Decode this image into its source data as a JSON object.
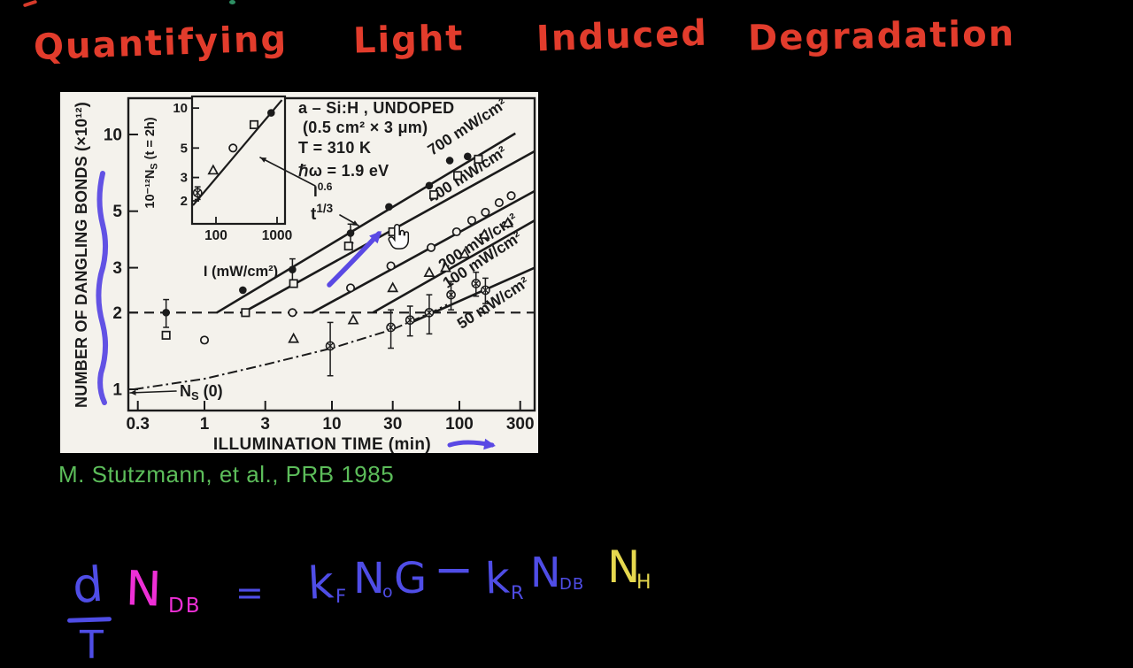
{
  "frame": {
    "background": "#000000"
  },
  "artifacts": {
    "stray_mark_color": "#d63a2a",
    "green_dot_color": "#2e8f63"
  },
  "title": {
    "color": "#e23c2c",
    "words": [
      "Quantifying",
      "Light",
      "Induced",
      "Degradation"
    ]
  },
  "citation": {
    "color": "#5cbd5a",
    "text": "M. Stutzmann, et al., PRB 1985"
  },
  "figure": {
    "bg": "#f4f2ec",
    "ink": "#1b1b1b",
    "overlay_color": "#5a49e4",
    "cursor_shape": "hand-pointer"
  },
  "chart_data": [
    {
      "id": "main",
      "type": "scatter",
      "xscale": "log",
      "yscale": "log",
      "xlabel": "ILLUMINATION TIME (min)",
      "ylabel": "NUMBER OF DANGLING BONDS (×10¹²)",
      "xticks": [
        0.3,
        1,
        3,
        10,
        30,
        100,
        300
      ],
      "yticks": [
        1,
        2,
        3,
        5,
        10
      ],
      "xlim": [
        0.26,
        390
      ],
      "ylim": [
        0.9,
        13.7
      ],
      "grid": false,
      "info_lines": [
        "a – Si:H , UNDOPED",
        "(0.5 cm² × 3 μm)",
        "T  =  310 K",
        "ℏω  =  1.9 eV"
      ],
      "slope_label": {
        "base": "t",
        "exp": "1/3"
      },
      "ns0_label": {
        "base": "N",
        "sub": "S",
        "rest": " (0)"
      },
      "dashed_hline": 2,
      "dashdot_curve": [
        [
          0.28,
          1.0
        ],
        [
          1,
          1.1
        ],
        [
          3,
          1.25
        ],
        [
          10,
          1.45
        ],
        [
          30,
          1.72
        ],
        [
          60,
          2.0
        ],
        [
          80,
          2.15
        ]
      ],
      "series": [
        {
          "name": "700 mW/cm²",
          "marker": "filled-circle",
          "line": [
            [
              1.25,
              2.0
            ],
            [
              275,
              10.1
            ]
          ],
          "label_anchor": [
            121,
            10.3
          ],
          "points": [
            [
              0.5,
              2.0,
              0.25
            ],
            [
              2,
              2.45
            ],
            [
              4.9,
              2.95,
              0.3
            ],
            [
              14,
              4.1,
              0.35
            ],
            [
              28,
              5.2
            ],
            [
              58,
              6.3
            ],
            [
              84,
              7.9
            ],
            [
              116,
              8.2
            ]
          ]
        },
        {
          "name": "400 mW/cm²",
          "marker": "open-square",
          "line": [
            [
              2.0,
              2.0
            ],
            [
              390,
              8.6
            ]
          ],
          "label_anchor": [
            121,
            6.7
          ],
          "points": [
            [
              0.5,
              1.63
            ],
            [
              2.1,
              2.0
            ],
            [
              5,
              2.6
            ],
            [
              13.5,
              3.65
            ],
            [
              30,
              4.15
            ],
            [
              63,
              5.8
            ],
            [
              97,
              6.9
            ],
            [
              141,
              8.0
            ]
          ]
        },
        {
          "name": "200 mW/cm²",
          "marker": "open-circle",
          "line": [
            [
              7.0,
              2.0
            ],
            [
              390,
              6.0
            ]
          ],
          "label_anchor": [
            147,
            3.65
          ],
          "points": [
            [
              1,
              1.56
            ],
            [
              4.9,
              2.0
            ],
            [
              14,
              2.5
            ],
            [
              29,
              3.05
            ],
            [
              60,
              3.6
            ],
            [
              95,
              4.15
            ],
            [
              125,
              4.6
            ],
            [
              160,
              4.95
            ],
            [
              205,
              5.4
            ],
            [
              255,
              5.75
            ]
          ]
        },
        {
          "name": "100 mW/cm²",
          "marker": "open-triangle",
          "line": [
            [
              21,
              2.0
            ],
            [
              390,
              4.6
            ]
          ],
          "label_anchor": [
            159,
            3.1
          ],
          "points": [
            [
              5,
              1.58
            ],
            [
              14.7,
              1.87
            ],
            [
              30,
              2.5
            ],
            [
              58,
              2.87
            ],
            [
              78,
              3.0
            ],
            [
              110,
              3.4
            ],
            [
              157,
              4.05
            ],
            [
              240,
              4.5
            ]
          ]
        },
        {
          "name": "50 mW/cm²",
          "marker": "circle-x",
          "line": [
            [
              42,
              1.83
            ],
            [
              390,
              3.0
            ]
          ],
          "label_anchor": [
            193,
            2.1
          ],
          "points": [
            [
              9.7,
              1.48,
              0.35
            ],
            [
              29,
              1.75,
              0.3
            ],
            [
              41,
              1.87,
              0.25
            ],
            [
              58,
              2.0,
              0.35
            ],
            [
              86,
              2.35,
              0.3
            ],
            [
              135,
              2.6,
              0.28
            ],
            [
              160,
              2.45,
              0.28
            ]
          ]
        }
      ]
    },
    {
      "id": "inset",
      "type": "scatter",
      "xscale": "log",
      "yscale": "log",
      "xlabel": "I (mW/cm²)",
      "ylabel_parts": {
        "pre": "10⁻¹²N",
        "sub": "S",
        "post": " (t = 2h)"
      },
      "xticks": [
        100,
        1000
      ],
      "yticks": [
        2,
        3,
        5,
        10
      ],
      "xlim": [
        41,
        1350
      ],
      "ylim": [
        1.35,
        12
      ],
      "power_label": {
        "base": "I",
        "exp": "0.6"
      },
      "line": [
        [
          42,
          1.85
        ],
        [
          1200,
          11.5
        ]
      ],
      "points": [
        {
          "xy": [
            50,
            2.3
          ],
          "marker": "circle-x",
          "err": 0.25
        },
        {
          "xy": [
            90,
            3.4
          ],
          "marker": "open-triangle"
        },
        {
          "xy": [
            190,
            5.0
          ],
          "marker": "open-circle"
        },
        {
          "xy": [
            420,
            7.5
          ],
          "marker": "open-square"
        },
        {
          "xy": [
            800,
            9.2
          ],
          "marker": "filled-circle"
        }
      ]
    }
  ],
  "equation": {
    "blue": "#4f4de6",
    "magenta": "#ee2fd6",
    "yellow": "#e6d84e",
    "terms": {
      "d": "d",
      "denom": "T",
      "N1": "N",
      "N1sub": "DB",
      "eq": "=",
      "k1": "k",
      "k1sub": "F",
      "N2": "N",
      "N2sub": "o",
      "G": "G",
      "minus": "−",
      "k2": "k",
      "k2sub": "R",
      "N3": "N",
      "N3sub": "DB",
      "N4": "N",
      "N4sub": "H"
    }
  }
}
